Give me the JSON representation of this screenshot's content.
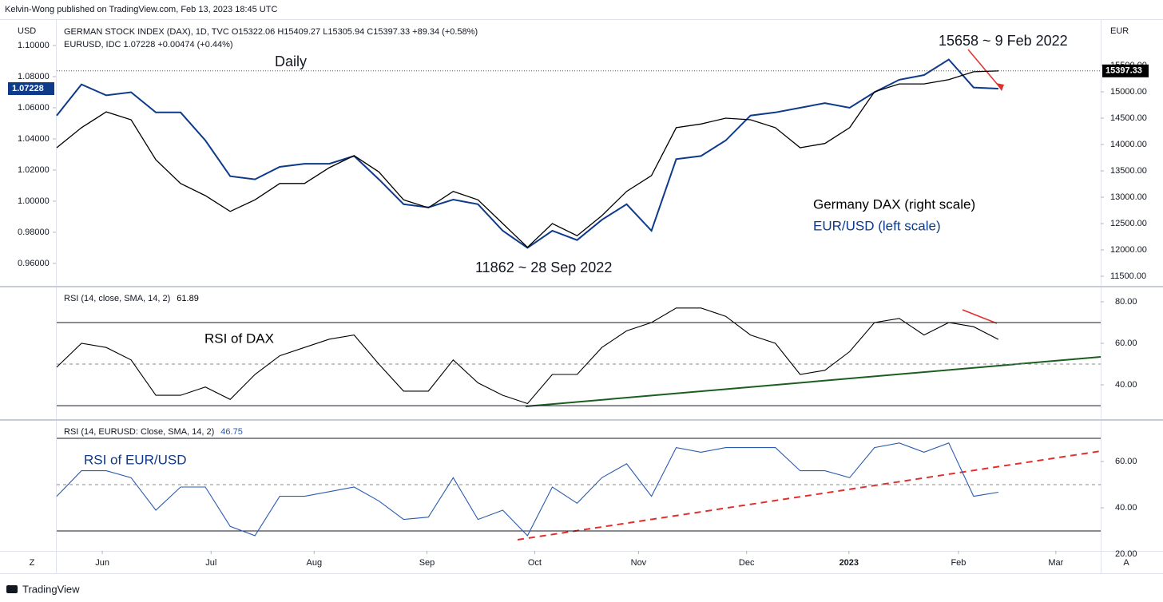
{
  "header": {
    "attribution": "Kelvin-Wong published on TradingView.com, Feb 13, 2023 18:45 UTC",
    "brand": "TradingView",
    "left_unit": "USD",
    "right_unit": "EUR",
    "z_button": "Z",
    "a_button": "A"
  },
  "chart_data": [
    {
      "type": "line",
      "legend": [
        "GERMAN STOCK INDEX (DAX), 1D, TVC  O15322.06  H15409.27  L15305.94  C15397.33  +89.34 (+0.58%)",
        "EURUSD, IDC  1.07228  +0.00474 (+0.44%)"
      ],
      "annotations": [
        "Daily",
        "15658 ~ 9 Feb 2022",
        "11862 ~ 28 Sep 2022"
      ],
      "xlim": [
        0,
        42.13
      ],
      "ylim": [
        0.9456,
        1.1164
      ],
      "yticks": [
        {
          "value": 1.1,
          "label": "1.10000"
        },
        {
          "value": 1.08,
          "label": "1.08000"
        },
        {
          "value": 1.06,
          "label": "1.06000"
        },
        {
          "value": 1.04,
          "label": "1.04000"
        },
        {
          "value": 1.02,
          "label": "1.02000"
        },
        {
          "value": 1.0,
          "label": "1.00000"
        },
        {
          "value": 0.98,
          "label": "0.98000"
        },
        {
          "value": 0.96,
          "label": "0.96000"
        }
      ],
      "y2lim": [
        11318,
        16364
      ],
      "y2ticks": [
        {
          "value": 15500,
          "label": "15500.00"
        },
        {
          "value": 15000,
          "label": "15000.00"
        },
        {
          "value": 14500,
          "label": "14500.00"
        },
        {
          "value": 14000,
          "label": "14000.00"
        },
        {
          "value": 13500,
          "label": "13500.00"
        },
        {
          "value": 13000,
          "label": "13000.00"
        },
        {
          "value": 12500,
          "label": "12500.00"
        },
        {
          "value": 12000,
          "label": "12000.00"
        },
        {
          "value": 11500,
          "label": "11500.00"
        }
      ],
      "series": [
        {
          "name": "EUR/USD (left scale)",
          "color": "#0e3a8a",
          "axis": "y",
          "last_label": "1.07228",
          "values": [
            1.055,
            1.075,
            1.068,
            1.07,
            1.057,
            1.057,
            1.039,
            1.016,
            1.014,
            1.022,
            1.024,
            1.024,
            1.029,
            1.014,
            0.998,
            0.996,
            1.001,
            0.998,
            0.981,
            0.97,
            0.981,
            0.975,
            0.988,
            0.998,
            0.981,
            1.027,
            1.029,
            1.039,
            1.055,
            1.057,
            1.06,
            1.063,
            1.06,
            1.07,
            1.078,
            1.081,
            1.091,
            1.073,
            1.07228
          ]
        },
        {
          "name": "Germany DAX (right scale)",
          "color": "#000000",
          "axis": "y2",
          "last_label": "15397.33",
          "values": [
            13940,
            14320,
            14620,
            14470,
            13710,
            13260,
            13030,
            12730,
            12950,
            13260,
            13260,
            13560,
            13790,
            13480,
            12950,
            12800,
            13110,
            12950,
            12500,
            12050,
            12500,
            12270,
            12650,
            13110,
            13410,
            14320,
            14390,
            14500,
            14470,
            14320,
            13940,
            14020,
            14320,
            15000,
            15150,
            15150,
            15230,
            15380,
            15397.33
          ]
        }
      ]
    },
    {
      "type": "rsi",
      "title": "RSI (14, close, SMA, 14, 2)",
      "value_label": "61.89",
      "annotation": "RSI of DAX",
      "color": "#000000",
      "xlim": [
        0,
        42.13
      ],
      "ylim": [
        23.5,
        86.9
      ],
      "yticks": [
        {
          "value": 80,
          "label": "80.00"
        },
        {
          "value": 60,
          "label": "60.00"
        },
        {
          "value": 40,
          "label": "40.00"
        }
      ],
      "bands": [
        70,
        30
      ],
      "midline": 50,
      "values": [
        48.5,
        60,
        58,
        52,
        35,
        35,
        39,
        33,
        45,
        54,
        58,
        62,
        64,
        50,
        37,
        37,
        52,
        41,
        35,
        31,
        45,
        45,
        58,
        66,
        70,
        77,
        77,
        73,
        64,
        60,
        45,
        47,
        56,
        70,
        72,
        64,
        70,
        68,
        61.89
      ]
    },
    {
      "type": "rsi",
      "title": "RSI (14, EURUSD: Close, SMA, 14, 2)",
      "value_label": "46.75",
      "annotation": "RSI of EUR/USD",
      "color": "#2a5bb0",
      "xlim": [
        0,
        42.13
      ],
      "ylim": [
        21.4,
        77.6
      ],
      "yticks": [
        {
          "value": 60,
          "label": "60.00"
        },
        {
          "value": 40,
          "label": "40.00"
        },
        {
          "value": 20,
          "label": "20.00"
        }
      ],
      "bands": [
        70,
        30
      ],
      "midline": 50,
      "values": [
        45,
        56,
        56,
        53,
        39,
        49,
        49,
        32,
        28,
        45,
        45,
        47,
        49,
        43,
        35,
        36,
        53,
        35,
        39,
        28,
        49,
        42,
        53,
        59,
        45,
        66,
        64,
        66,
        66,
        66,
        56,
        56,
        53,
        66,
        68,
        64,
        68,
        45,
        46.75
      ],
      "xticks": [
        {
          "value": 1.84,
          "label": "Jun"
        },
        {
          "value": 6.23,
          "label": "Jul"
        },
        {
          "value": 10.39,
          "label": "Aug"
        },
        {
          "value": 14.94,
          "label": "Sep"
        },
        {
          "value": 19.29,
          "label": "Oct"
        },
        {
          "value": 23.48,
          "label": "Nov"
        },
        {
          "value": 27.84,
          "label": "Dec"
        },
        {
          "value": 31.97,
          "label": "2023"
        },
        {
          "value": 36.39,
          "label": "Feb"
        },
        {
          "value": 40.32,
          "label": "Mar"
        }
      ]
    }
  ]
}
